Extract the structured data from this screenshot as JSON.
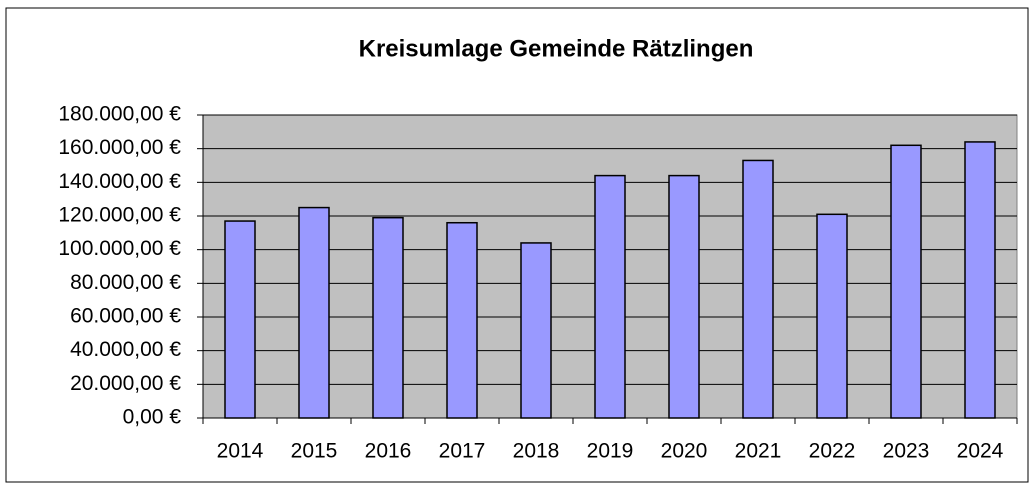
{
  "chart_data": {
    "type": "bar",
    "title": "Kreisumlage Gemeinde Rätzlingen",
    "categories": [
      "2014",
      "2015",
      "2016",
      "2017",
      "2018",
      "2019",
      "2020",
      "2021",
      "2022",
      "2023",
      "2024"
    ],
    "values": [
      117000,
      125000,
      119000,
      116000,
      104000,
      144000,
      144000,
      153000,
      121000,
      162000,
      164000
    ],
    "color": "#9999ff",
    "ylim": [
      0,
      180000
    ],
    "yticks": [
      {
        "value": 0,
        "label": "0,00 €"
      },
      {
        "value": 20000,
        "label": "20.000,00 €"
      },
      {
        "value": 40000,
        "label": "40.000,00 €"
      },
      {
        "value": 60000,
        "label": "60.000,00 €"
      },
      {
        "value": 80000,
        "label": "80.000,00 €"
      },
      {
        "value": 100000,
        "label": "100.000,00 €"
      },
      {
        "value": 120000,
        "label": "120.000,00 €"
      },
      {
        "value": 140000,
        "label": "140.000,00 €"
      },
      {
        "value": 160000,
        "label": "160.000,00 €"
      },
      {
        "value": 180000,
        "label": "180.000,00 €"
      }
    ],
    "grid": true
  }
}
